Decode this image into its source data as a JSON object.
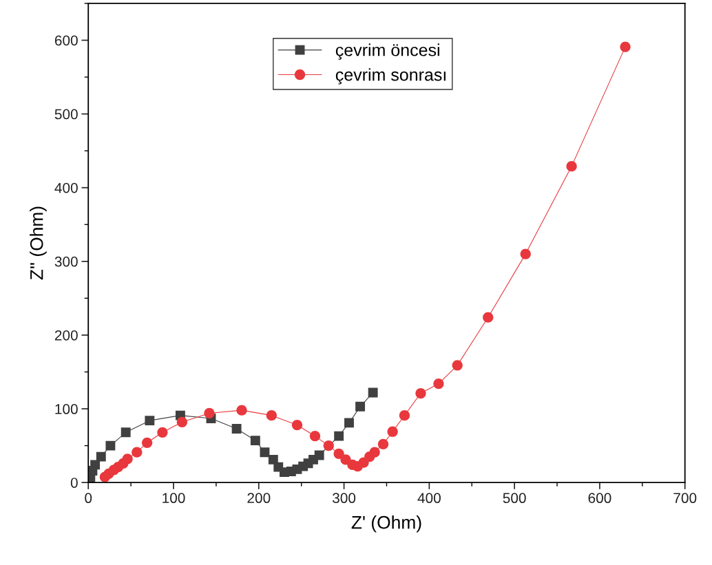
{
  "chart_data": {
    "type": "line",
    "xlabel": "Z' (Ohm)",
    "ylabel": "Z'' (Ohm)",
    "xlim": [
      0,
      700
    ],
    "ylim": [
      0,
      650
    ],
    "xticks": [
      0,
      100,
      200,
      300,
      400,
      500,
      600,
      700
    ],
    "yticks": [
      0,
      100,
      200,
      300,
      400,
      500,
      600
    ],
    "grid": false,
    "legend": "top",
    "line_style": "solid",
    "series": [
      {
        "name": "çevrim öncesi",
        "color": "#404040",
        "marker": "square",
        "x": [
          1,
          2.5,
          5,
          8,
          15,
          26,
          44,
          72,
          108,
          144,
          174,
          196,
          207,
          217,
          223,
          230,
          238,
          245,
          252,
          258,
          264,
          271,
          294,
          306,
          319,
          334
        ],
        "values": [
          1,
          7,
          16,
          24,
          35,
          50,
          68,
          84,
          91,
          87,
          73,
          57,
          41,
          31,
          21,
          14,
          15,
          18,
          22,
          26,
          31,
          37,
          63,
          81,
          103,
          122
        ]
      },
      {
        "name": "çevrim sonrası",
        "color": "#e8383d",
        "marker": "circle",
        "x": [
          19.5,
          24,
          30,
          35,
          41,
          46,
          57,
          69,
          87,
          110,
          142,
          180,
          215,
          245,
          266,
          282,
          294,
          302,
          310,
          316,
          323,
          330,
          336,
          346,
          357,
          371,
          390,
          411,
          433,
          469,
          513,
          567,
          630
        ],
        "values": [
          7.5,
          12,
          17,
          21,
          26,
          32,
          41,
          54,
          68,
          82,
          94,
          98,
          91,
          78,
          63,
          50,
          39,
          31,
          24,
          22,
          27,
          35,
          41,
          52,
          69,
          91,
          121,
          134,
          159,
          224,
          310,
          429,
          591
        ]
      }
    ]
  }
}
